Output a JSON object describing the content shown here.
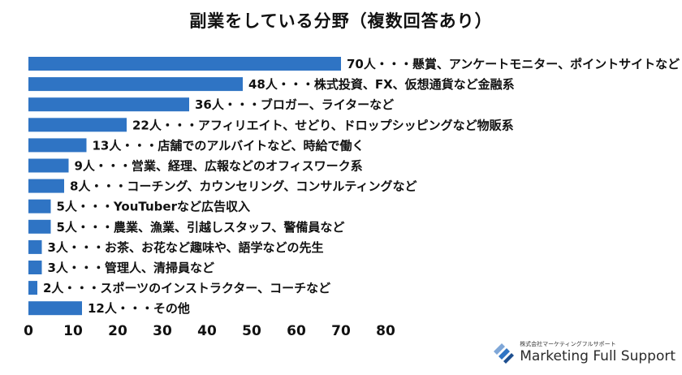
{
  "chart_data": {
    "type": "bar",
    "orientation": "horizontal",
    "title": "副業をしている分野（複数回答あり）",
    "categories": [
      "懸賞、アンケートモニター、ポイントサイトなど",
      "株式投資、FX、仮想通貨など金融系",
      "ブロガー、ライターなど",
      "アフィリエイト、せどり、ドロップシッピングなど物販系",
      "店舗でのアルバイトなど、時給で働く",
      "営業、経理、広報などのオフィスワーク系",
      "コーチング、カウンセリング、コンサルティングなど",
      "YouTuberなど広告収入",
      "農業、漁業、引越しスタッフ、警備員など",
      "お茶、お花など趣味や、語学などの先生",
      "管理人、清掃員など",
      "スポーツのインストラクター、コーチなど",
      "その他"
    ],
    "values": [
      70,
      48,
      36,
      22,
      13,
      9,
      8,
      5,
      5,
      3,
      3,
      2,
      12
    ],
    "data_labels": [
      "70人・・・懸賞、アンケートモニター、ポイントサイトなど",
      "48人・・・株式投資、FX、仮想通貨など金融系",
      "36人・・・ブロガー、ライターなど",
      "22人・・・アフィリエイト、せどり、ドロップシッピングなど物販系",
      "13人・・・店舗でのアルバイトなど、時給で働く",
      "9人・・・営業、経理、広報などのオフィスワーク系",
      "8人・・・コーチング、カウンセリング、コンサルティングなど",
      "5人・・・YouTuberなど広告収入",
      "5人・・・農業、漁業、引越しスタッフ、警備員など",
      "3人・・・お茶、お花など趣味や、語学などの先生",
      "3人・・・管理人、清掃員など",
      "2人・・・スポーツのインストラクター、コーチなど",
      "12人・・・その他"
    ],
    "xlim": [
      0,
      80
    ],
    "xticks": [
      "0",
      "10",
      "20",
      "30",
      "40",
      "50",
      "60",
      "70",
      "80"
    ],
    "grid": false,
    "color": "#2f74c4"
  },
  "logo": {
    "company_small": "株式会社マーケティングフルサポート",
    "company_name": "Marketing Full Support"
  }
}
